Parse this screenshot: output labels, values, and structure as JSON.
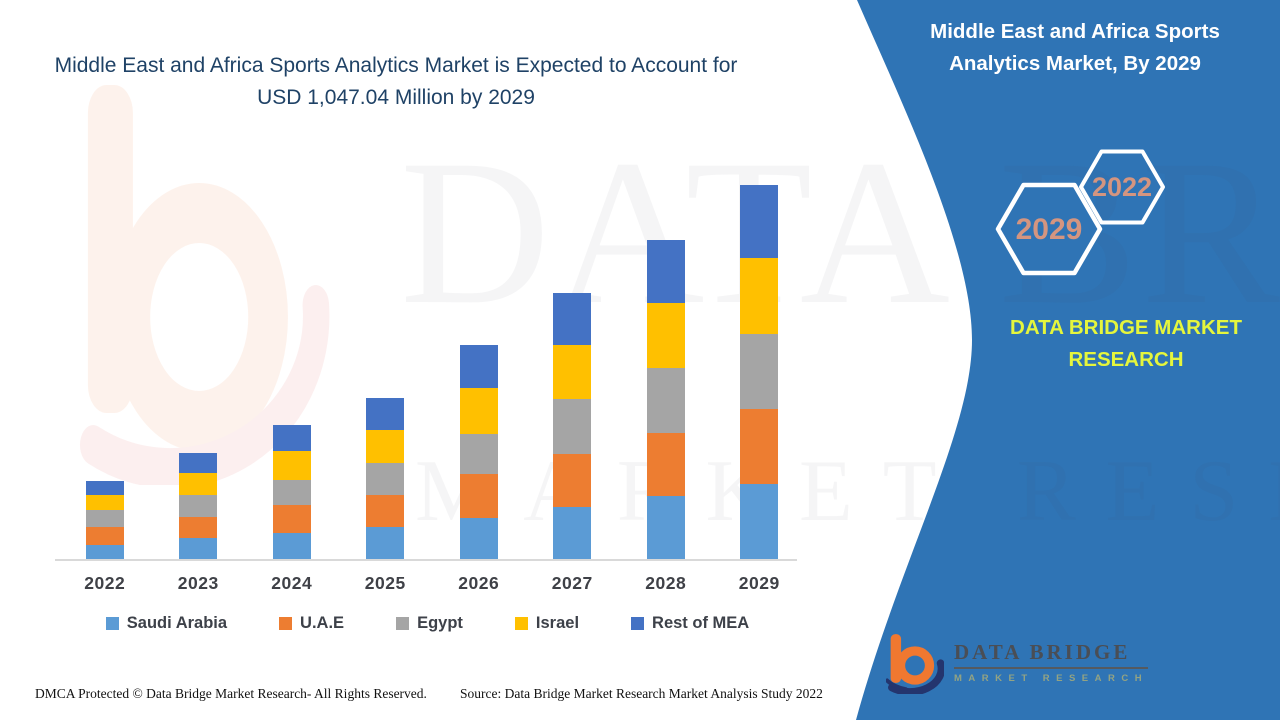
{
  "main_title": "Middle East and Africa Sports Analytics Market is Expected to Account for USD 1,047.04 Million by 2029",
  "side_panel": {
    "title": "Middle East and Africa Sports Analytics Market, By 2029",
    "hex_small_label": "2022",
    "hex_large_label": "2029",
    "brand_text": "DATA BRIDGE MARKET RESEARCH",
    "panel_color": "#2F74B5",
    "hex_stroke_color": "#FFFFFF",
    "hex_label_color": "#D49580",
    "brand_text_color": "#E5F63C"
  },
  "chart_data": {
    "type": "bar",
    "stacked": true,
    "title": "Middle East and Africa Sports Analytics Market is Expected to Account for USD 1,047.04 Million by 2029",
    "unit": "USD Million",
    "xlabel": "",
    "ylabel": "",
    "ylim": [
      0,
      1047.04
    ],
    "grid": false,
    "y_axis_visible": false,
    "legend_position": "bottom",
    "categories": [
      "2022",
      "2023",
      "2024",
      "2025",
      "2026",
      "2027",
      "2028",
      "2029"
    ],
    "series": [
      {
        "name": "Saudi Arabia",
        "color": "#5B9BD5",
        "values": [
          40,
          59,
          72,
          89,
          116,
          146,
          176,
          209
        ]
      },
      {
        "name": "U.A.E",
        "color": "#ED7D31",
        "values": [
          50,
          58,
          78,
          90,
          123,
          149,
          177,
          210
        ]
      },
      {
        "name": "Egypt",
        "color": "#A5A5A5",
        "values": [
          47,
          61,
          72,
          91,
          111,
          154,
          182,
          210
        ]
      },
      {
        "name": "Israel",
        "color": "#FFC000",
        "values": [
          43,
          62,
          80,
          91,
          129,
          150,
          182,
          213
        ]
      },
      {
        "name": "Rest of MEA",
        "color": "#4472C4",
        "values": [
          39,
          58,
          73,
          91,
          120,
          147,
          177,
          205.04
        ]
      }
    ],
    "annotations": [
      "Total 2029 value labeled in title: USD 1,047.04 Million"
    ]
  },
  "watermark": {
    "line1": "DATA BRIDGE",
    "line2": "MARKET RESEARCH"
  },
  "logo": {
    "name": "DATA BRIDGE",
    "subtitle": "MARKET RESEARCH"
  },
  "footer": {
    "dmca": "DMCA Protected © Data Bridge Market Research- All Rights Reserved.",
    "source": "Source: Data Bridge Market Research Market Analysis Study 2022"
  },
  "colors": {
    "title_navy": "#1F4266",
    "axis_line": "#D9D9D9",
    "axis_label": "#3F4147"
  }
}
